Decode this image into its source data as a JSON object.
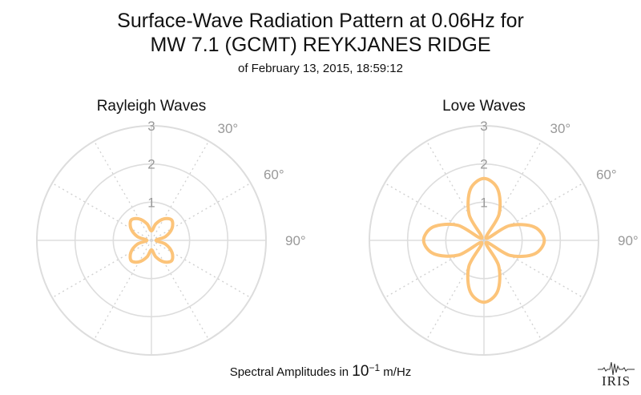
{
  "header": {
    "title_line1": "Surface-Wave Radiation Pattern at 0.06Hz for",
    "title_line2": "MW 7.1 (GCMT) REYKJANES RIDGE",
    "subtitle": "of February 13, 2015, 18:59:12"
  },
  "footer": {
    "prefix": "Spectral Amplitudes in",
    "base": "10",
    "exponent": "−1",
    "unit": "m/Hz"
  },
  "logo": {
    "text": "IRIS",
    "icon": "seismogram-icon"
  },
  "colors": {
    "curve": "#fcc47a",
    "grid": "#dddddd",
    "spoke": "#d0d0d0",
    "label": "#999999"
  },
  "chart_data": [
    {
      "type": "polar",
      "title": "Rayleigh Waves",
      "rlim": [
        0,
        3
      ],
      "radial_ticks": [
        "1",
        "2",
        "3"
      ],
      "angle_ticks": [
        "30°",
        "60°",
        "90°"
      ],
      "angle_step_deg": 30,
      "azimuth_deg": [
        0,
        15,
        30,
        45,
        60,
        75,
        90,
        105,
        120,
        135,
        150,
        165,
        180,
        195,
        210,
        225,
        240,
        255,
        270,
        285,
        300,
        315,
        330,
        345
      ],
      "amplitude": [
        0.25,
        0.45,
        0.65,
        0.75,
        0.62,
        0.38,
        0.12,
        0.38,
        0.62,
        0.75,
        0.65,
        0.45,
        0.25,
        0.45,
        0.65,
        0.75,
        0.62,
        0.38,
        0.12,
        0.38,
        0.62,
        0.75,
        0.65,
        0.45
      ]
    },
    {
      "type": "polar",
      "title": "Love Waves",
      "rlim": [
        0,
        3
      ],
      "radial_ticks": [
        "1",
        "2",
        "3"
      ],
      "angle_ticks": [
        "30°",
        "60°",
        "90°"
      ],
      "angle_step_deg": 30,
      "azimuth_deg": [
        0,
        15,
        30,
        45,
        60,
        75,
        90,
        105,
        120,
        135,
        150,
        165,
        180,
        195,
        210,
        225,
        240,
        255,
        270,
        285,
        300,
        315,
        330,
        345
      ],
      "amplitude": [
        1.62,
        1.39,
        0.79,
        0.08,
        0.77,
        1.36,
        1.58,
        1.37,
        0.79,
        0.08,
        0.77,
        1.38,
        1.62,
        1.39,
        0.79,
        0.08,
        0.77,
        1.36,
        1.58,
        1.37,
        0.79,
        0.08,
        0.77,
        1.38
      ]
    }
  ]
}
